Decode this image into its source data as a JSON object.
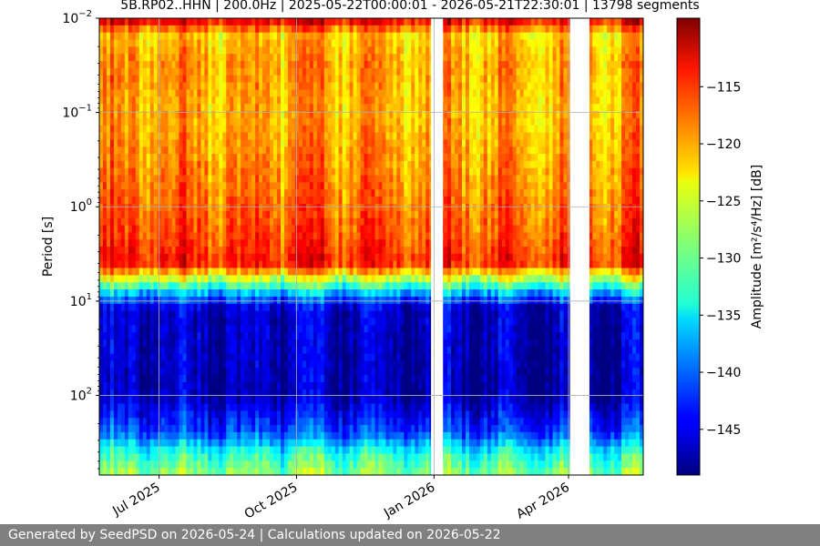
{
  "chart_data": {
    "type": "heatmap",
    "title": "5B.RP02..HHN | 200.0Hz | 2025-05-22T00:00:01 - 2026-05-21T22:30:01 | 13798 segments",
    "ylabel": "Period [s]",
    "y_scale": "log",
    "y_inverted": true,
    "ylim": [
      0.01,
      700
    ],
    "y_ticks": [
      {
        "value": 0.01,
        "base": "10",
        "exp": "−2"
      },
      {
        "value": 0.1,
        "base": "10",
        "exp": "−1"
      },
      {
        "value": 1,
        "base": "10",
        "exp": "0"
      },
      {
        "value": 10,
        "base": "10",
        "exp": "1"
      },
      {
        "value": 100,
        "base": "10",
        "exp": "2"
      }
    ],
    "xlim": [
      "2025-05-22",
      "2026-05-21"
    ],
    "x_ticks": [
      {
        "date": "2025-07-01",
        "label": "Jul 2025"
      },
      {
        "date": "2025-10-01",
        "label": "Oct 2025"
      },
      {
        "date": "2026-01-01",
        "label": "Jan 2026"
      },
      {
        "date": "2026-04-01",
        "label": "Apr 2026"
      }
    ],
    "grid": true,
    "colormap": "jet",
    "colorbar": {
      "label": "Amplitude [m²/s⁴/Hz] [dB]",
      "range": [
        -149,
        -109
      ],
      "ticks": [
        "−115",
        "−120",
        "−125",
        "−130",
        "−135",
        "−140",
        "−145"
      ],
      "tick_values": [
        -115,
        -120,
        -125,
        -130,
        -135,
        -140,
        -145
      ]
    },
    "data_gaps": [
      [
        "2025-12-30",
        "2026-01-07"
      ],
      [
        "2026-04-02",
        "2026-04-15"
      ]
    ],
    "period_profile_db": [
      {
        "period": 0.01,
        "db": -112
      },
      {
        "period": 0.015,
        "db": -122
      },
      {
        "period": 0.03,
        "db": -120
      },
      {
        "period": 0.1,
        "db": -121
      },
      {
        "period": 0.5,
        "db": -119
      },
      {
        "period": 2,
        "db": -117
      },
      {
        "period": 4,
        "db": -115
      },
      {
        "period": 6,
        "db": -127
      },
      {
        "period": 8,
        "db": -136
      },
      {
        "period": 12,
        "db": -146
      },
      {
        "period": 100,
        "db": -147
      },
      {
        "period": 250,
        "db": -141
      },
      {
        "period": 400,
        "db": -133
      },
      {
        "period": 700,
        "db": -128
      }
    ]
  },
  "footer": {
    "text": "Generated by SeedPSD on 2026-05-24 | Calculations updated on 2026-05-22"
  }
}
